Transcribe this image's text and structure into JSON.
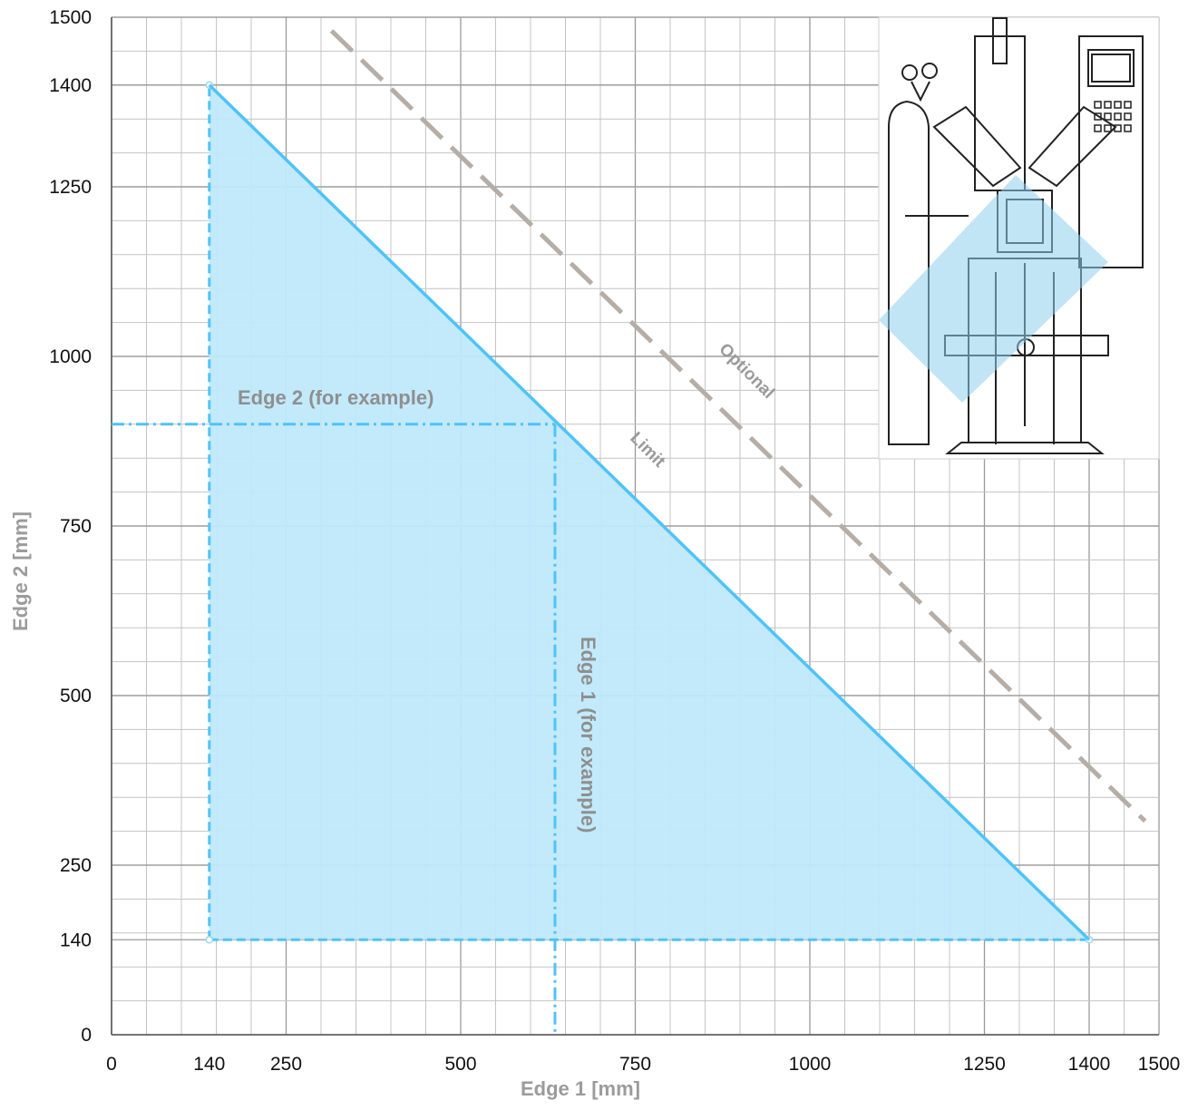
{
  "chart_data": {
    "type": "area",
    "xlabel": "Edge 1 [mm]",
    "ylabel": "Edge 2 [mm]",
    "xlim": [
      0,
      1500
    ],
    "ylim": [
      0,
      1500
    ],
    "x_ticks": [
      0,
      140,
      250,
      500,
      750,
      1000,
      1250,
      1400,
      1500
    ],
    "y_ticks": [
      0,
      140,
      250,
      500,
      750,
      1000,
      1250,
      1400,
      1500
    ],
    "grid": true,
    "minor_grid_step": 50,
    "series": [
      {
        "key": "working-area",
        "style": "filled-triangle",
        "color": "#4fc3f7",
        "fill": "#bfe9fb",
        "points": [
          [
            140,
            1400
          ],
          [
            1400,
            140
          ],
          [
            140,
            140
          ]
        ]
      },
      {
        "key": "limit",
        "name": "Limit",
        "style": "solid",
        "color": "#4fc3f7",
        "points": [
          [
            140,
            1400
          ],
          [
            1400,
            140
          ]
        ]
      },
      {
        "key": "optional",
        "name": "Optional",
        "style": "dashed",
        "color": "#b5ada6",
        "points": [
          [
            315,
            1480
          ],
          [
            1480,
            315
          ]
        ]
      }
    ],
    "example_point": {
      "x": 635,
      "y": 900
    },
    "annotations": {
      "edge2_example": "Edge 2 (for example)",
      "edge1_example": "Edge 1 (for example)",
      "limit": "Limit",
      "optional": "Optional"
    },
    "inset": {
      "description_icon": "welding-machine-drawing",
      "highlight_color": "#8fd0ef"
    }
  }
}
